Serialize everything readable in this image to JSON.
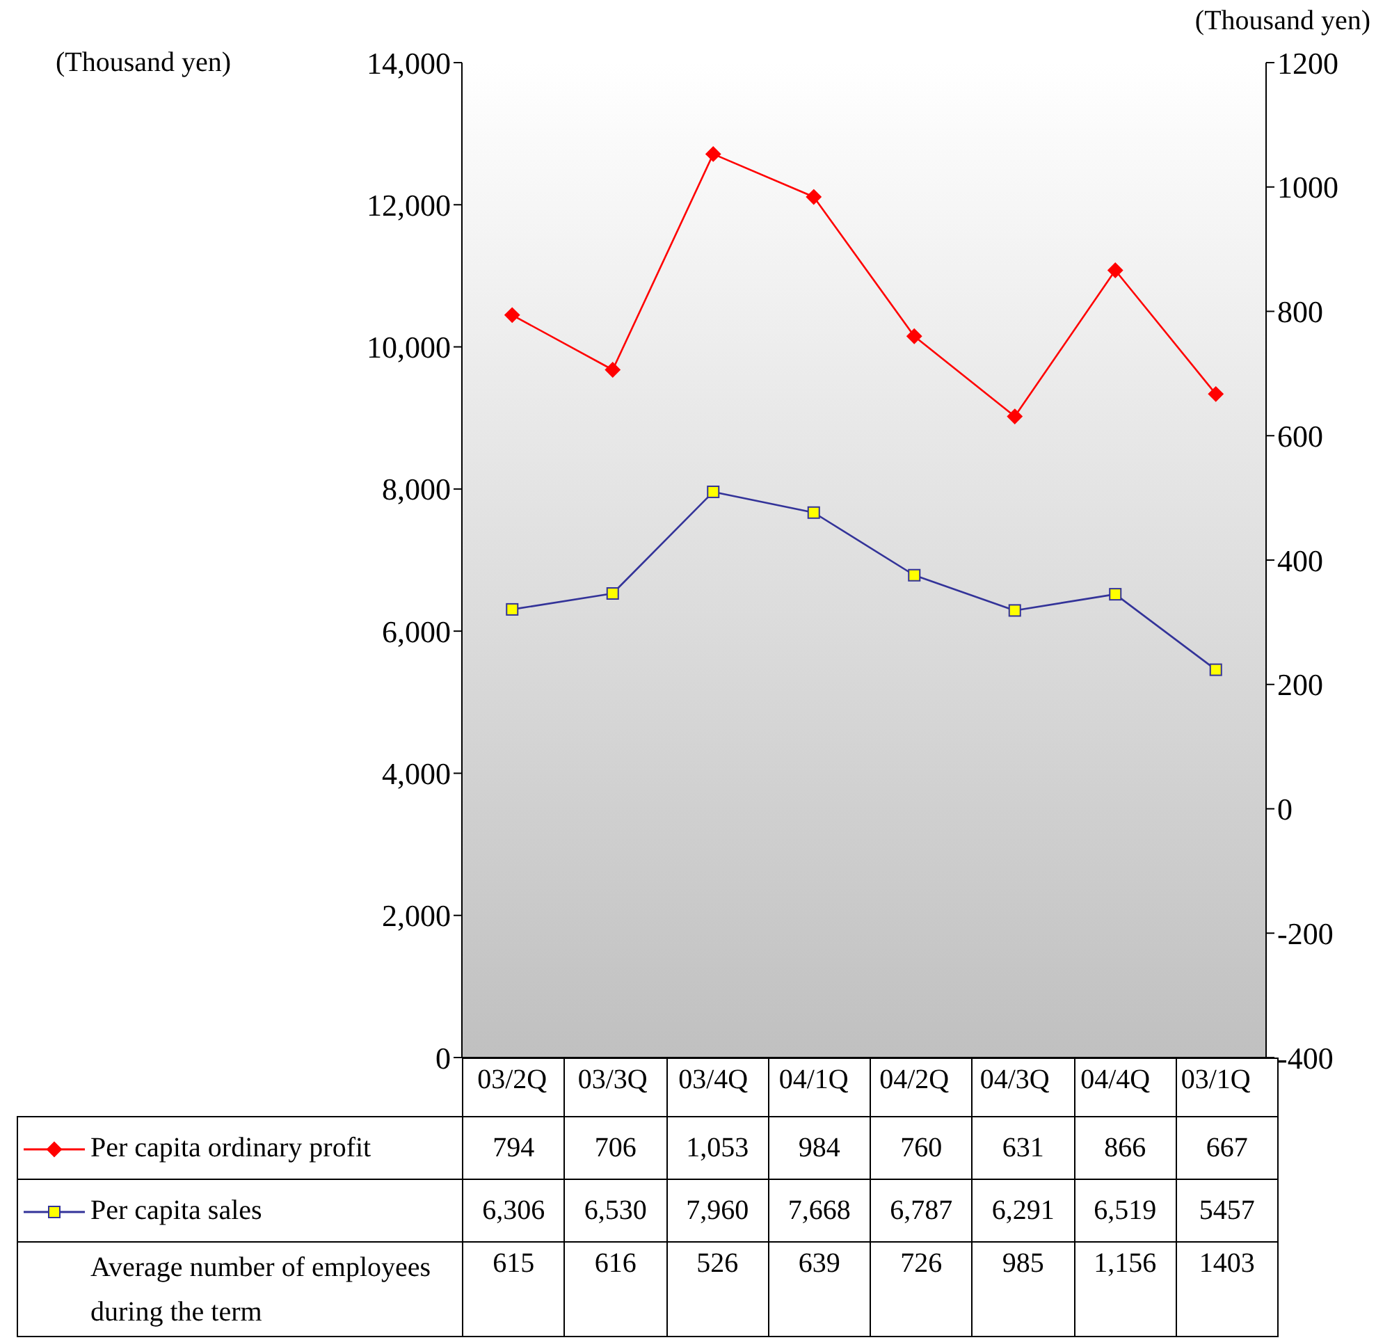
{
  "chart_data": {
    "type": "line",
    "ylabel": "(Thousand yen)",
    "y2label": "(Thousand yen)",
    "categories": [
      "03/2Q",
      "03/3Q",
      "03/4Q",
      "04/1Q",
      "04/2Q",
      "04/3Q",
      "04/4Q",
      "03/1Q"
    ],
    "series": [
      {
        "name": "Per capita ordinary profit",
        "color": "#ff0000",
        "marker": "diamond",
        "axis": "y2",
        "values": [
          794,
          706,
          1053,
          984,
          760,
          631,
          866,
          667
        ],
        "value_labels": [
          "794",
          "706",
          "1,053",
          "984",
          "760",
          "631",
          "866",
          "667"
        ]
      },
      {
        "name": "Per capita sales",
        "color": "#333399",
        "colors": [
          "#ffff00",
          "#ffff00",
          "#ffff00",
          "#ffff00",
          "#ffff00",
          "#ffff00",
          "#ffff00",
          "#ffff00"
        ],
        "marker": "square",
        "axis": "y",
        "values": [
          6306,
          6530,
          7960,
          7668,
          6787,
          6291,
          6519,
          5457
        ],
        "value_labels": [
          "6,306",
          "6,530",
          "7,960",
          "7,668",
          "6,787",
          "6,291",
          "6,519",
          "5457"
        ]
      }
    ],
    "ylim": [
      0,
      14000
    ],
    "yticks": [
      0,
      {
        "value": 2000,
        "label": "2,000"
      },
      {
        "value": 4000,
        "label": "4,000"
      },
      {
        "value": 6000,
        "label": "6,000"
      },
      {
        "value": 8000,
        "label": "8,000"
      },
      {
        "value": 10000,
        "label": "10,000"
      },
      {
        "value": 12000,
        "label": "12,000"
      },
      {
        "value": 14000,
        "label": "14,000"
      }
    ],
    "y2lim": [
      -400,
      1200
    ],
    "y2ticks": [
      -400,
      -200,
      0,
      200,
      400,
      600,
      800,
      1000,
      1200
    ],
    "legend": "bottom",
    "annotations": [
      "Average number of employees during the term",
      "615",
      "616",
      "526",
      "639",
      "726",
      "985",
      "1,156",
      "1403"
    ]
  }
}
